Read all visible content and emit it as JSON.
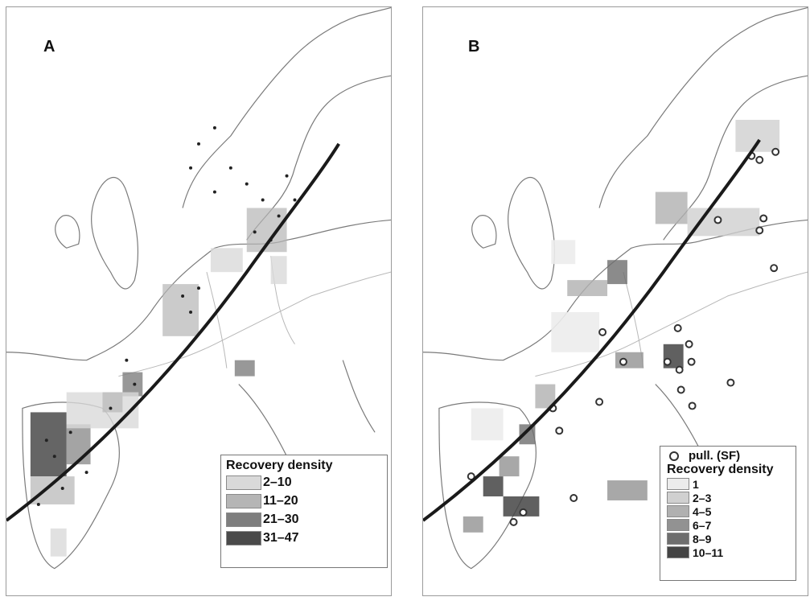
{
  "panels": [
    {
      "letter": "A",
      "legend": {
        "title": "Recovery density",
        "items": [
          {
            "label": "2–10",
            "color": "#d9d9d9"
          },
          {
            "label": "11–20",
            "color": "#b5b5b5"
          },
          {
            "label": "21–30",
            "color": "#7e7e7e"
          },
          {
            "label": "31–47",
            "color": "#4a4a4a"
          }
        ]
      }
    },
    {
      "letter": "B",
      "legend": {
        "marker_label": "pull. (SF)",
        "title": "Recovery density",
        "items": [
          {
            "label": "1",
            "color": "#ececec"
          },
          {
            "label": "2–3",
            "color": "#d0d0d0"
          },
          {
            "label": "4–5",
            "color": "#b0b0b0"
          },
          {
            "label": "6–7",
            "color": "#929292"
          },
          {
            "label": "8–9",
            "color": "#6e6e6e"
          },
          {
            "label": "10–11",
            "color": "#444444"
          }
        ]
      }
    }
  ],
  "colors": {
    "route_line": "#1a1a1a",
    "coast": "#7a7a7a",
    "border": "#b8b8b8"
  }
}
